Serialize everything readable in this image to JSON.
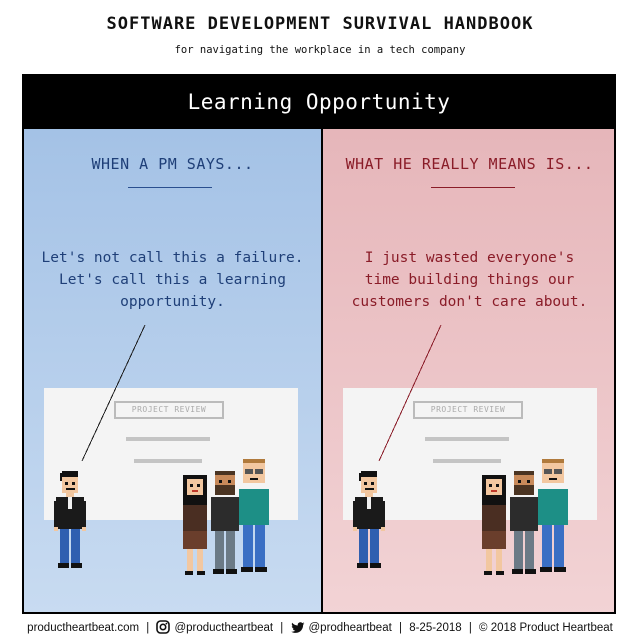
{
  "header": {
    "title": "SOFTWARE DEVELOPMENT SURVIVAL HANDBOOK",
    "subtitle": "for navigating the workplace in a tech company"
  },
  "banner": {
    "title": "Learning Opportunity"
  },
  "panels": [
    {
      "heading": "WHEN A PM SAYS...",
      "quote_lines": [
        "Let's not call this a failure.",
        "Let's call this a learning",
        "opportunity."
      ],
      "board_label": "PROJECT REVIEW"
    },
    {
      "heading": "WHAT HE REALLY MEANS IS...",
      "quote_lines": [
        "I just wasted everyone's",
        "time building things our",
        "customers don't care about."
      ],
      "board_label": "PROJECT REVIEW"
    }
  ],
  "footer": {
    "website": "productheartbeat.com",
    "instagram": "@productheartbeat",
    "twitter": "@prodheartbeat",
    "date": "8-25-2018",
    "copyright": "© 2018 Product Heartbeat"
  },
  "colors": {
    "left_panel": "#a4c2e6",
    "right_panel": "#e6b6ba",
    "left_text": "#1f3f78",
    "right_text": "#8a1c28",
    "banner": "#000000"
  },
  "icons": [
    "instagram-icon",
    "twitter-icon"
  ]
}
